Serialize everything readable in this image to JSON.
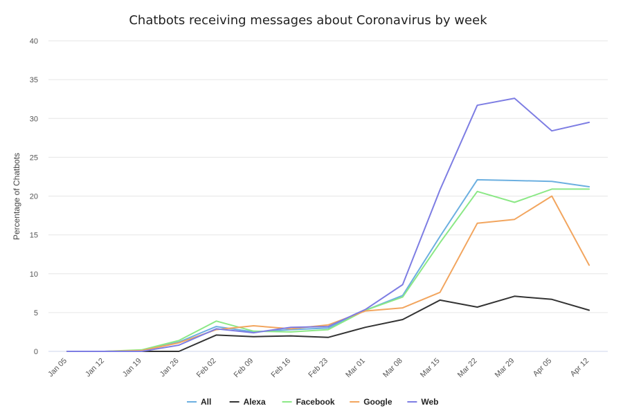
{
  "chart_data": {
    "type": "line",
    "title": "Chatbots receiving messages about Coronavirus by week",
    "xlabel": "",
    "ylabel": "Percentage of Chatbots",
    "ylim": [
      0,
      40
    ],
    "yticks": [
      0,
      5,
      10,
      15,
      20,
      25,
      30,
      35,
      40
    ],
    "grid": true,
    "legend_position": "bottom",
    "categories": [
      "Jan 05",
      "Jan 12",
      "Jan 19",
      "Jan 26",
      "Feb 02",
      "Feb 09",
      "Feb 16",
      "Feb 23",
      "Mar 01",
      "Mar 08",
      "Mar 15",
      "Mar 22",
      "Mar 29",
      "Apr 05",
      "Apr 12"
    ],
    "series": [
      {
        "name": "All",
        "color": "#6bafe0",
        "values": [
          0,
          0,
          0.1,
          1.2,
          3.2,
          2.5,
          2.8,
          3.0,
          5.3,
          7.2,
          14.8,
          22.1,
          22.0,
          21.9,
          21.2
        ]
      },
      {
        "name": "Alexa",
        "color": "#333333",
        "values": [
          0,
          0,
          0,
          0,
          2.1,
          1.9,
          2.0,
          1.8,
          3.1,
          4.1,
          6.6,
          5.7,
          7.1,
          6.7,
          5.3
        ]
      },
      {
        "name": "Facebook",
        "color": "#8be886",
        "values": [
          0,
          0,
          0.2,
          1.4,
          3.9,
          2.6,
          2.5,
          2.8,
          5.3,
          7.0,
          14.0,
          20.6,
          19.2,
          20.9,
          20.9
        ]
      },
      {
        "name": "Google",
        "color": "#f2a55e",
        "values": [
          0,
          0,
          0.1,
          1.1,
          2.8,
          3.3,
          2.9,
          3.4,
          5.2,
          5.6,
          7.6,
          16.5,
          17.0,
          20.0,
          11.1
        ]
      },
      {
        "name": "Web",
        "color": "#7d7de3",
        "values": [
          0,
          0,
          0,
          0.8,
          2.9,
          2.4,
          3.1,
          3.2,
          5.4,
          8.6,
          20.8,
          31.7,
          32.6,
          28.4,
          29.5
        ]
      }
    ]
  }
}
